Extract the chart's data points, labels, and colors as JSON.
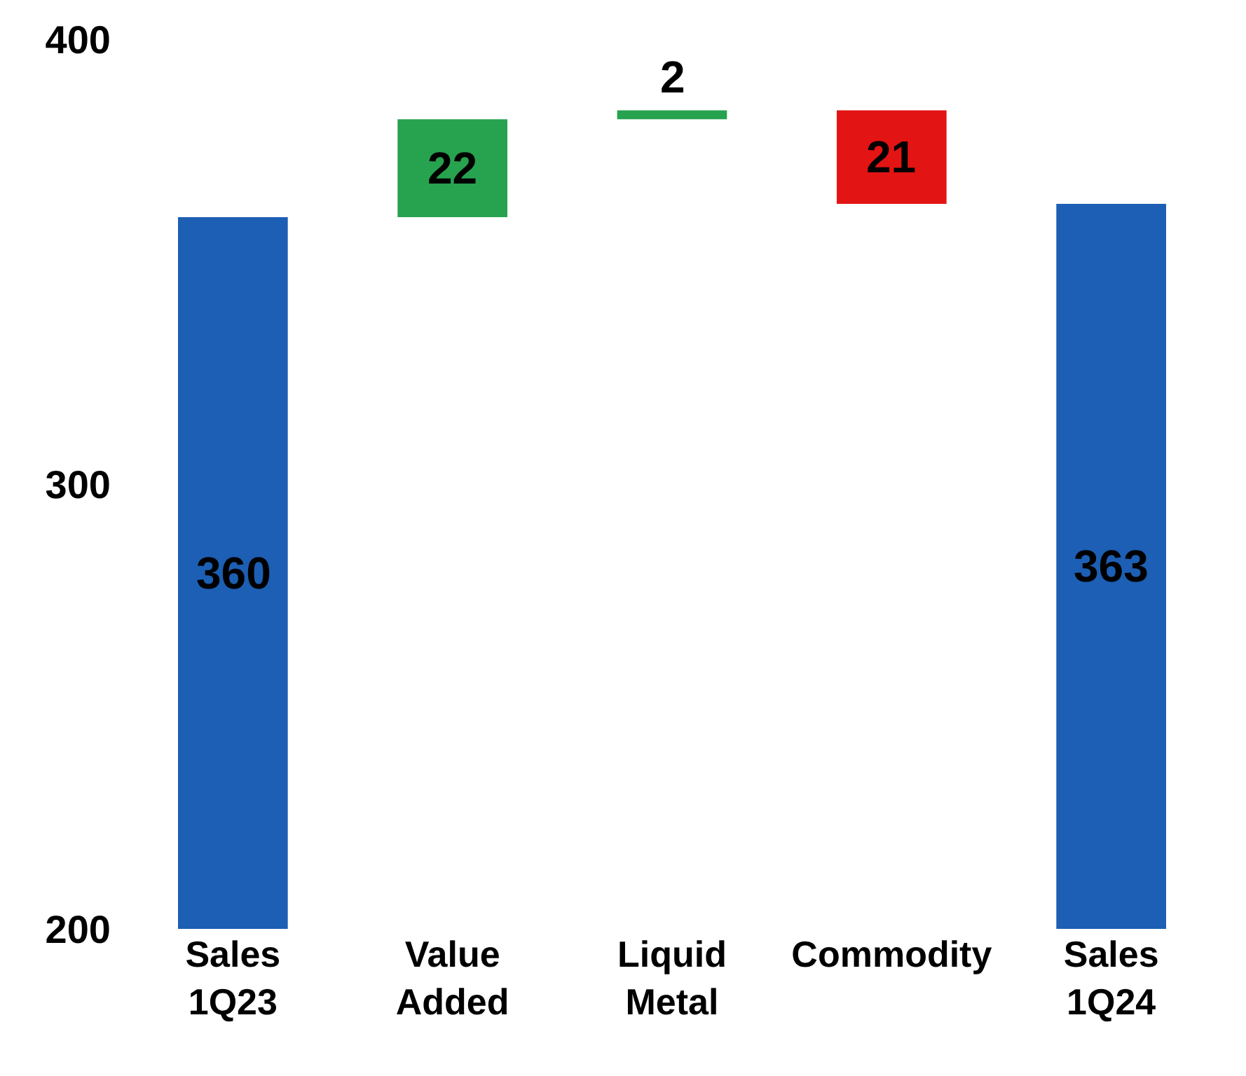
{
  "chart_data": {
    "type": "bar",
    "categories": [
      "Sales 1Q23",
      "Value Added",
      "Liquid Metal",
      "Commodity",
      "Sales 1Q24"
    ],
    "values": [
      360,
      22,
      2,
      21,
      363
    ],
    "base": [
      null,
      360,
      382,
      363,
      null
    ],
    "colors": [
      "#1c5fb4",
      "#27a24f",
      "#27a24f",
      "#e31414",
      "#1c5fb4"
    ],
    "ylim": [
      200,
      400
    ],
    "yticks": [
      200,
      300,
      400
    ],
    "data_labels": true
  }
}
